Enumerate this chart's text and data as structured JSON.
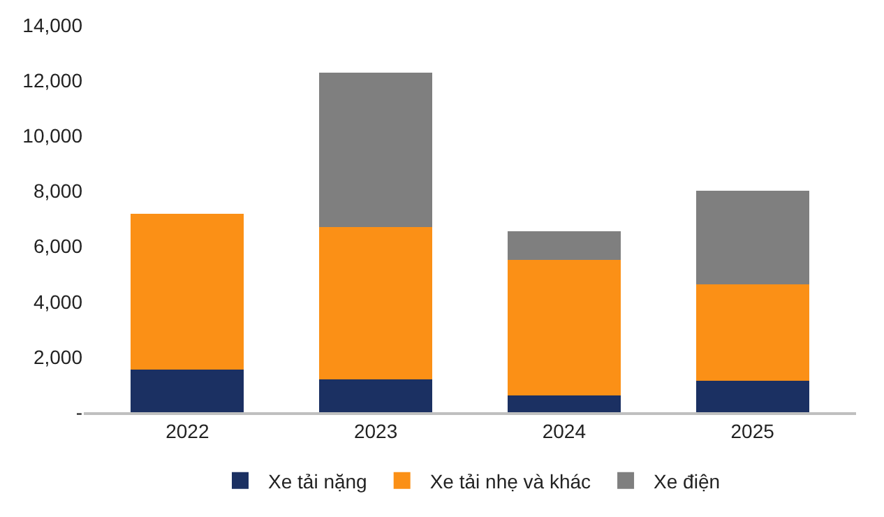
{
  "chart_data": {
    "type": "bar",
    "stacked": true,
    "categories": [
      "2022",
      "2023",
      "2024",
      "2025"
    ],
    "series": [
      {
        "name": "Xe tải nặng",
        "color": "#1b3062",
        "values": [
          1550,
          1200,
          600,
          1150
        ]
      },
      {
        "name": "Xe tải nhẹ và khác",
        "color": "#fb9016",
        "values": [
          5630,
          5490,
          4900,
          3470
        ]
      },
      {
        "name": "Xe điện",
        "color": "#7f7f7f",
        "values": [
          null,
          5590,
          1050,
          3400
        ]
      }
    ],
    "ylim": [
      0,
      14000
    ],
    "yticks": [
      {
        "value": 0,
        "label": "-"
      },
      {
        "value": 2000,
        "label": "2,000"
      },
      {
        "value": 4000,
        "label": "4,000"
      },
      {
        "value": 6000,
        "label": "6,000"
      },
      {
        "value": 8000,
        "label": "8,000"
      },
      {
        "value": 10000,
        "label": "10,000"
      },
      {
        "value": 12000,
        "label": "12,000"
      },
      {
        "value": 14000,
        "label": "14,000"
      }
    ],
    "grid": false,
    "legend": "bottom"
  }
}
